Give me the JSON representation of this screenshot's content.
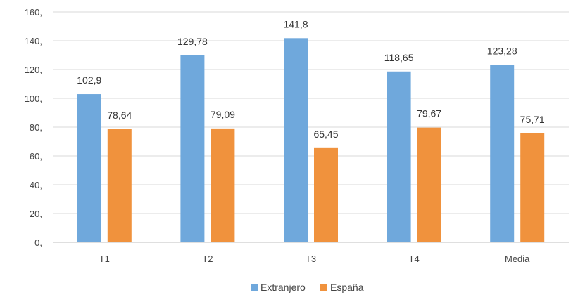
{
  "chart_data": {
    "type": "bar",
    "categories": [
      "T1",
      "T2",
      "T3",
      "T4",
      "Media"
    ],
    "series": [
      {
        "name": "Extranjero",
        "values": [
          102.9,
          129.78,
          141.8,
          118.65,
          123.28
        ],
        "labels": [
          "102,9",
          "129,78",
          "141,8",
          "118,65",
          "123,28"
        ],
        "color": "#6fa8dc"
      },
      {
        "name": "España",
        "values": [
          78.64,
          79.09,
          65.45,
          79.67,
          75.71
        ],
        "labels": [
          "78,64",
          "79,09",
          "65,45",
          "79,67",
          "75,71"
        ],
        "color": "#f0923d"
      }
    ],
    "yticks": [
      0,
      20,
      40,
      60,
      80,
      100,
      120,
      140,
      160
    ],
    "ytick_labels": [
      "0,",
      "20,",
      "40,",
      "60,",
      "80,",
      "100,",
      "120,",
      "140,",
      "160,"
    ],
    "ylim": [
      0,
      160
    ],
    "grid": true,
    "legend_position": "bottom",
    "gridline_color": "#d9d9d9"
  }
}
